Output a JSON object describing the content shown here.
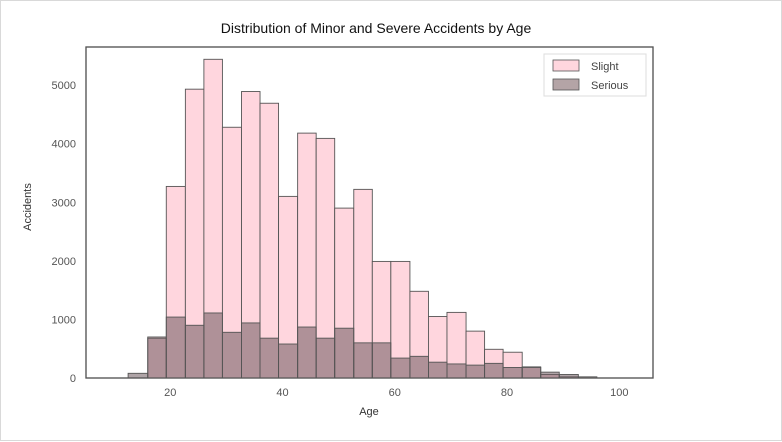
{
  "chart_data": {
    "type": "bar",
    "subtype": "overlaid histogram",
    "title": "Distribution of Minor and Severe Accidents by Age",
    "xlabel": "Age",
    "ylabel": "Accidents",
    "xlim": [
      5,
      106
    ],
    "ylim": [
      0,
      5650
    ],
    "xticks": [
      20,
      40,
      60,
      80,
      100
    ],
    "yticks": [
      0,
      1000,
      2000,
      3000,
      4000,
      5000
    ],
    "grid": false,
    "legend_position": "top-right",
    "colors": {
      "Slight": "#ffd6de",
      "Serious": "#b4a4a6",
      "edge": "#555555"
    },
    "series": [
      {
        "name": "Slight",
        "bin_edges": [
          16,
          19.3,
          22.7,
          26,
          29.3,
          32.7,
          36,
          39.3,
          42.7,
          46,
          49.3,
          52.7,
          56,
          59.3,
          62.7,
          66,
          69.3,
          72.7,
          76,
          79.3,
          82.7,
          86,
          89.3,
          92.7
        ],
        "values": [
          700,
          3270,
          4930,
          5440,
          4280,
          4890,
          4690,
          3100,
          4180,
          4090,
          2900,
          3220,
          1990,
          1990,
          1480,
          1050,
          1120,
          800,
          490,
          440,
          190,
          60,
          20
        ]
      },
      {
        "name": "Serious",
        "bin_edges": [
          12.5,
          16,
          19.3,
          22.7,
          26,
          29.3,
          32.7,
          36,
          39.3,
          42.7,
          46,
          49.3,
          52.7,
          56,
          59.3,
          62.7,
          66,
          69.3,
          72.7,
          76,
          79.3,
          82.7,
          86,
          89.3,
          92.7,
          96
        ],
        "values": [
          80,
          680,
          1040,
          900,
          1110,
          780,
          940,
          680,
          580,
          870,
          680,
          850,
          600,
          600,
          340,
          370,
          270,
          240,
          220,
          250,
          180,
          180,
          100,
          60,
          20
        ]
      }
    ]
  }
}
